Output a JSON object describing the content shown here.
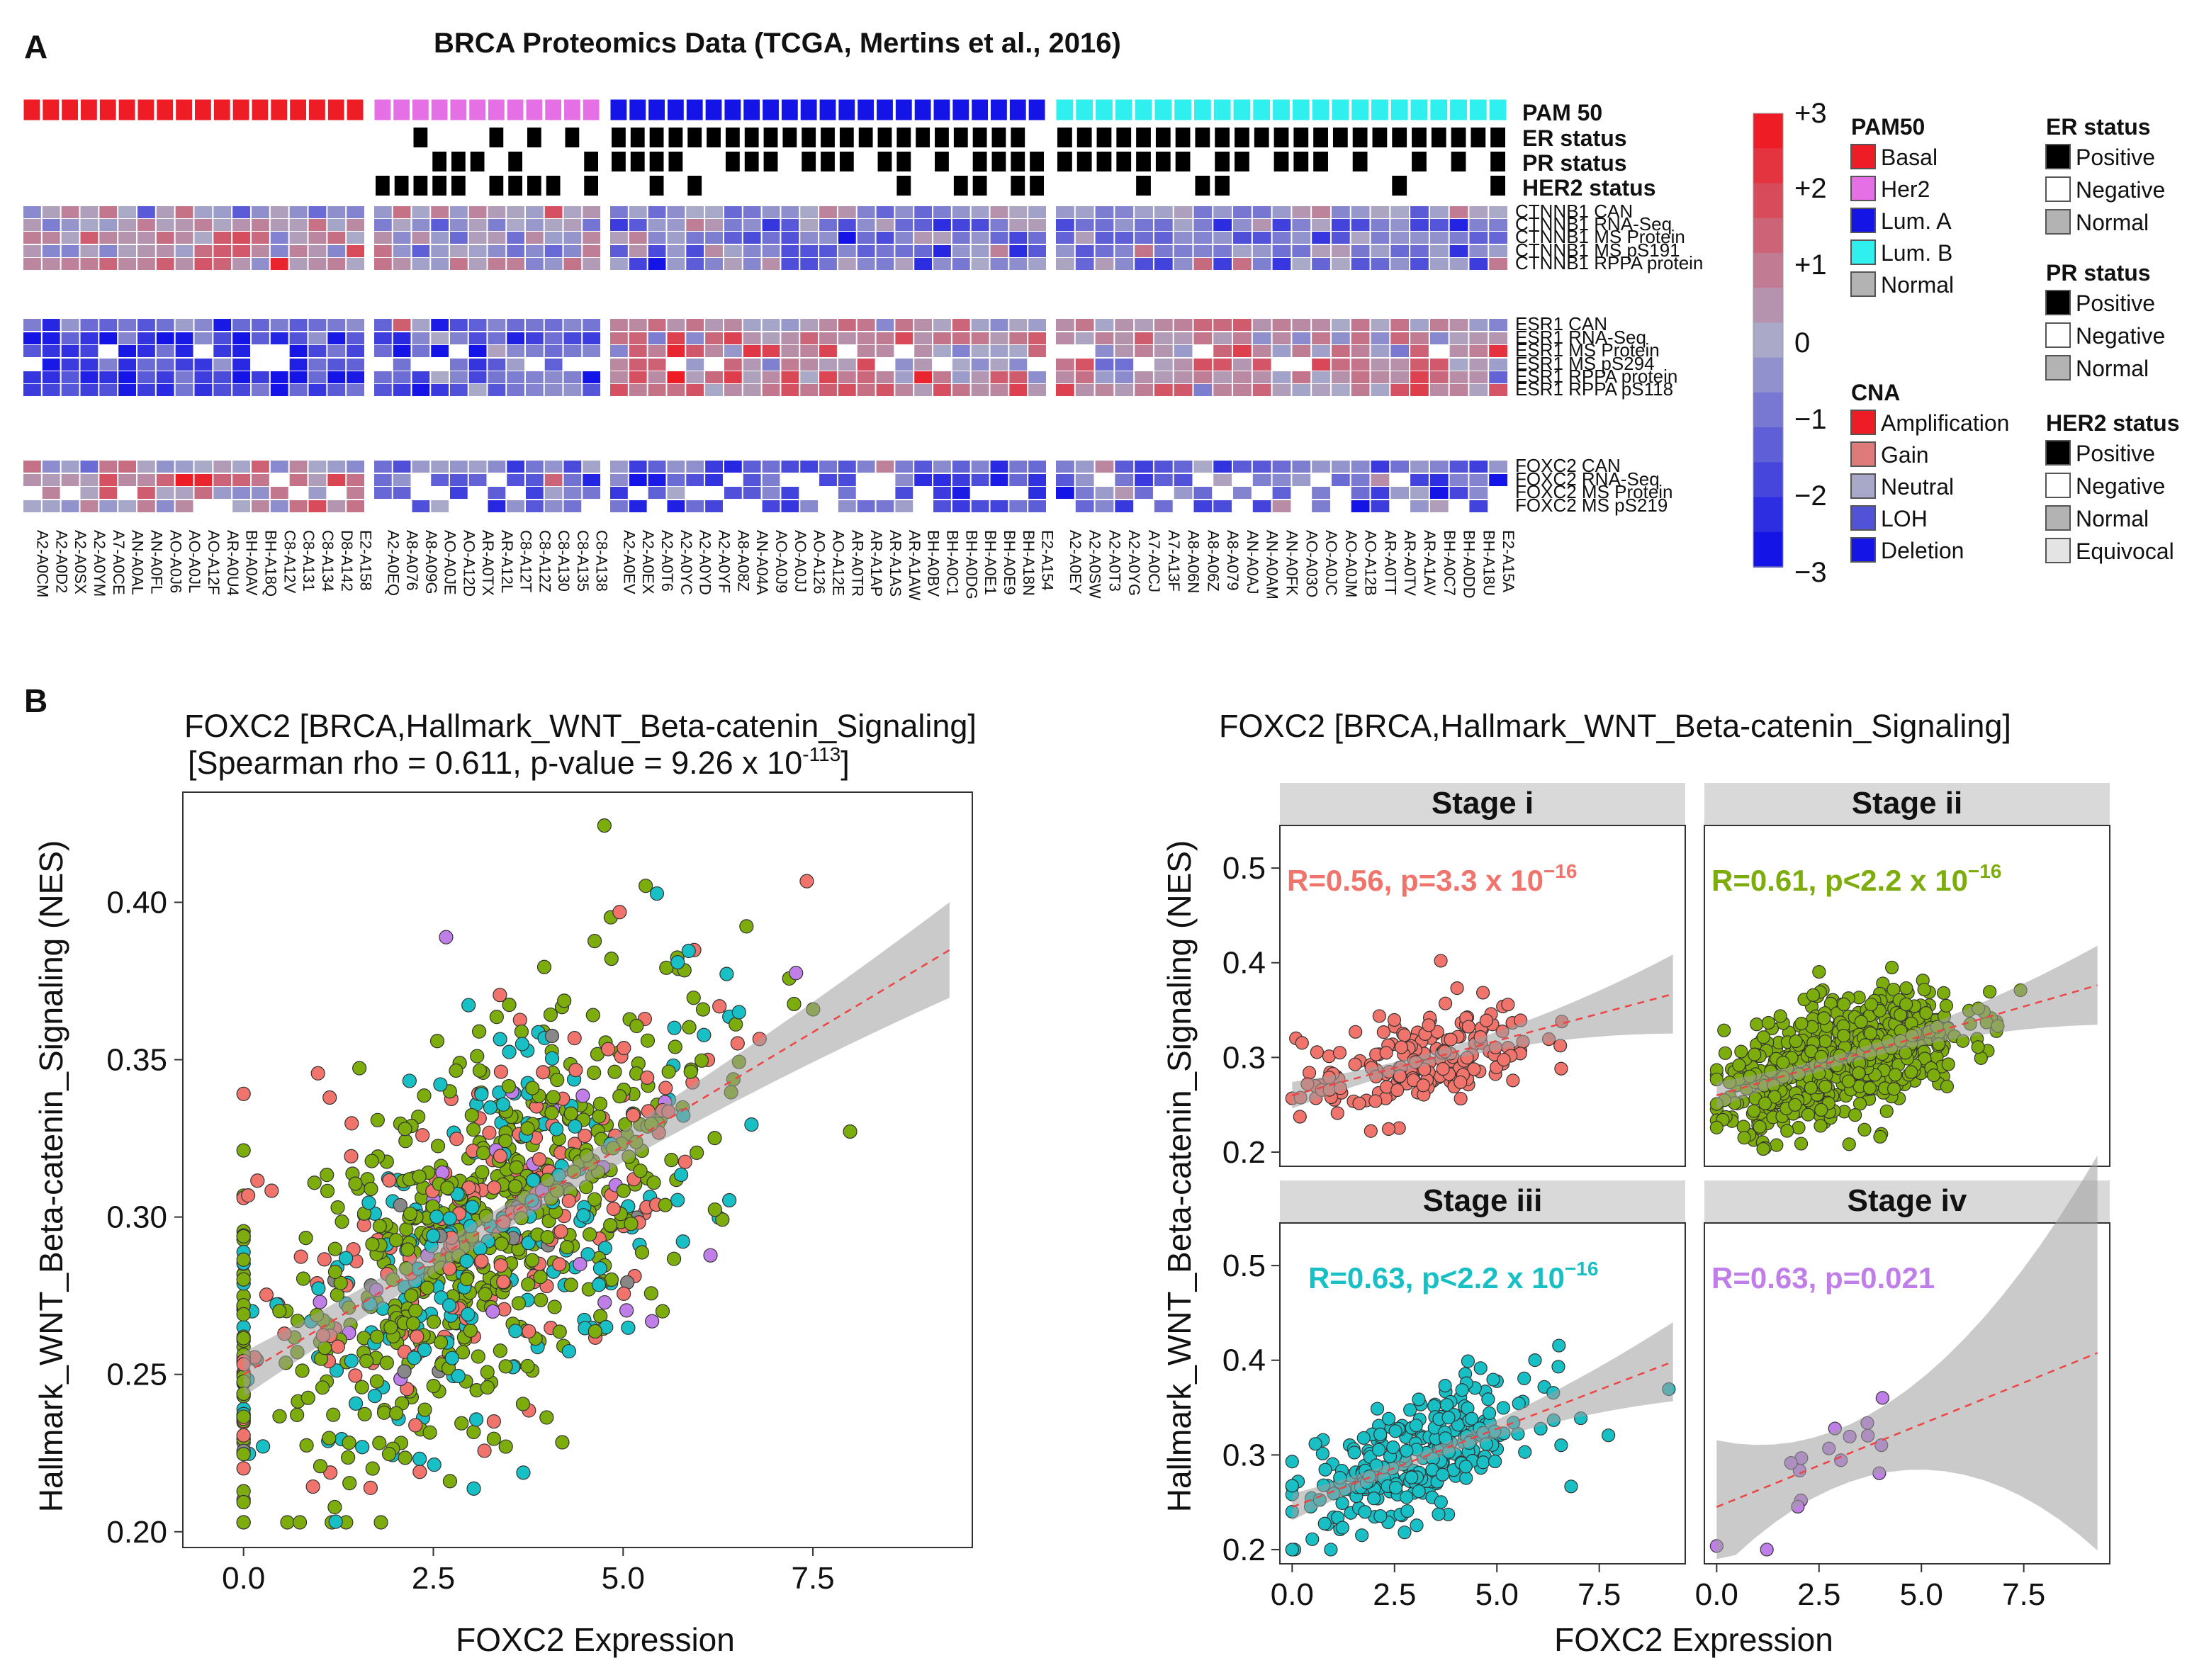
{
  "panel_a": {
    "label": "A",
    "title": "BRCA Proteomics Data (TCGA, Mertins et al., 2016)",
    "annotation_tracks": [
      "PAM 50",
      "ER status",
      "PR status",
      "HER2 status"
    ],
    "row_labels": [
      "CTNNB1 CAN",
      "CTNNB1 RNA-Seq",
      "CTNNB1 MS Protein",
      "CTNNB1 MS pS191",
      "CTNNB1 RPPA protein",
      "ESR1 CAN",
      "ESR1 RNA-Seq",
      "ESR1 MS Protein",
      "ESR1 MS pS294",
      "ESR1 RPPA protein",
      "ESR1 RPPA pS118",
      "FOXC2 CAN",
      "FOXC2 RNA-Seq",
      "FOXC2 MS Protein",
      "FOXC2 MS pS219"
    ],
    "sample_groups": [
      {
        "group": "Basal",
        "samples": [
          "A2-A0CM",
          "A2-A0D2",
          "A2-A0SX",
          "A2-A0YM",
          "A7-A0CE",
          "AN-A0AL",
          "AN-A0FL",
          "AO-A0J6",
          "AO-A0JL",
          "AO-A12F",
          "AR-A0U4",
          "BH-A0AV",
          "BH-A18Q",
          "C8-A12V",
          "C8-A131",
          "C8-A134",
          "D8-A142",
          "E2-A158"
        ]
      },
      {
        "group": "Her2",
        "samples": [
          "A2-A0EQ",
          "A8-A076",
          "A8-A09G",
          "AO-A0JE",
          "AO-A12D",
          "AR-A0TX",
          "AR-A12L",
          "C8-A12T",
          "C8-A12Z",
          "C8-A130",
          "C8-A135",
          "C8-A138"
        ]
      },
      {
        "group": "Lum. A",
        "samples": [
          "A2-A0EV",
          "A2-A0EX",
          "A2-A0T6",
          "A2-A0YC",
          "A2-A0YD",
          "A2-A0YF",
          "A8-A08Z",
          "AN-A04A",
          "AO-A0J9",
          "AO-A0JJ",
          "AO-A126",
          "AO-A12E",
          "AR-A0TR",
          "AR-A1AP",
          "AR-A1AS",
          "AR-A1AW",
          "BH-A0BV",
          "BH-A0C1",
          "BH-A0DG",
          "BH-A0E1",
          "BH-A0E9",
          "BH-A18N",
          "E2-A154"
        ]
      },
      {
        "group": "Lum. B",
        "samples": [
          "A2-A0EY",
          "A2-A0SW",
          "A2-A0T3",
          "A2-A0YG",
          "A7-A0CJ",
          "A7-A13F",
          "A8-A06N",
          "A8-A06Z",
          "A8-A079",
          "AN-A0AJ",
          "AN-A0AM",
          "AN-A0FK",
          "AO-A03O",
          "AO-A0JC",
          "AO-A0JM",
          "AO-A12B",
          "AR-A0TT",
          "AR-A0TV",
          "AR-A1AV",
          "BH-A0C7",
          "BH-A0DD",
          "BH-A18U",
          "E2-A15A"
        ]
      }
    ],
    "scale": {
      "ticks": [
        "+3",
        "+2",
        "+1",
        "0",
        "−1",
        "−2",
        "−3"
      ]
    },
    "legends": {
      "pam50": {
        "title": "PAM50",
        "items": [
          {
            "label": "Basal",
            "color": "#ee1c25"
          },
          {
            "label": "Her2",
            "color": "#e56fe5"
          },
          {
            "label": "Lum. A",
            "color": "#1414e6"
          },
          {
            "label": "Lum. B",
            "color": "#2fefef"
          },
          {
            "label": "Normal",
            "color": "#b3b3b3"
          }
        ]
      },
      "cna": {
        "title": "CNA",
        "items": [
          {
            "label": "Amplification",
            "color": "#ee1c25"
          },
          {
            "label": "Gain",
            "color": "#df7a7a"
          },
          {
            "label": "Neutral",
            "color": "#a8a8c8"
          },
          {
            "label": "LOH",
            "color": "#5252d6"
          },
          {
            "label": "Deletion",
            "color": "#1414e6"
          }
        ]
      },
      "er": {
        "title": "ER status",
        "items": [
          {
            "label": "Positive",
            "color": "#000000"
          },
          {
            "label": "Negative",
            "color": "#ffffff"
          },
          {
            "label": "Normal",
            "color": "#b3b3b3"
          }
        ]
      },
      "pr": {
        "title": "PR status",
        "items": [
          {
            "label": "Positive",
            "color": "#000000"
          },
          {
            "label": "Negative",
            "color": "#ffffff"
          },
          {
            "label": "Normal",
            "color": "#b3b3b3"
          }
        ]
      },
      "her2": {
        "title": "HER2 status",
        "items": [
          {
            "label": "Positive",
            "color": "#000000"
          },
          {
            "label": "Negative",
            "color": "#ffffff"
          },
          {
            "label": "Normal",
            "color": "#b3b3b3"
          },
          {
            "label": "Equivocal",
            "color": "#e4e4e4"
          }
        ]
      }
    }
  },
  "panel_b": {
    "label": "B",
    "left_title_1": "FOXC2 [BRCA,Hallmark_WNT_Beta-catenin_Signaling]",
    "left_title_2_prefix": "[Spearman rho = 0.611, p-value = 9.26 x 10",
    "left_title_2_exp": "-113",
    "left_title_2_suffix": "]",
    "right_title": "FOXC2 [BRCA,Hallmark_WNT_Beta-catenin_Signaling]",
    "xlabel": "FOXC2 Expression",
    "ylabel": "Hallmark_WNT_Beta-catenin_Signaling (NES)",
    "left_y_ticks": [
      "0.20",
      "0.25",
      "0.30",
      "0.35",
      "0.40"
    ],
    "left_x_ticks": [
      "0.0",
      "2.5",
      "5.0",
      "7.5"
    ],
    "right_y_ticks": [
      "0.2",
      "0.3",
      "0.4",
      "0.5"
    ],
    "right_x_ticks": [
      "0.0",
      "2.5",
      "5.0",
      "7.5"
    ],
    "facets": [
      {
        "title": "Stage i",
        "stat": "R=0.56, p=3.3 x 10",
        "exp": "−16",
        "color": "#f0746b"
      },
      {
        "title": "Stage ii",
        "stat": "R=0.61, p<2.2 x 10",
        "exp": "−16",
        "color": "#7cad0c"
      },
      {
        "title": "Stage iii",
        "stat": "R=0.63, p<2.2 x 10",
        "exp": "−16",
        "color": "#18bfc4"
      },
      {
        "title": "Stage iv",
        "stat": "R=0.63, p=0.021",
        "exp": "",
        "color": "#c07fe8"
      }
    ]
  },
  "chart_data": [
    {
      "type": "heatmap",
      "title": "BRCA Proteomics Data (TCGA, Mertins et al., 2016)",
      "rows": [
        "CTNNB1 CAN",
        "CTNNB1 RNA-Seq",
        "CTNNB1 MS Protein",
        "CTNNB1 MS pS191",
        "CTNNB1 RPPA protein",
        "ESR1 CAN",
        "ESR1 RNA-Seq",
        "ESR1 MS Protein",
        "ESR1 MS pS294",
        "ESR1 RPPA protein",
        "ESR1 RPPA pS118",
        "FOXC2 CAN",
        "FOXC2 RNA-Seq",
        "FOXC2 MS Protein",
        "FOXC2 MS pS219"
      ],
      "value_range": [
        -3,
        3
      ]
    },
    {
      "type": "scatter",
      "title": "FOXC2 [BRCA,Hallmark_WNT_Beta-catenin_Signaling]",
      "xlabel": "FOXC2 Expression",
      "ylabel": "Hallmark_WNT_Beta-catenin_Signaling (NES)",
      "xlim": [
        -0.8,
        9.6
      ],
      "ylim": [
        0.195,
        0.435
      ],
      "spearman_rho": 0.611,
      "fit": {
        "intercept": 0.25,
        "slope": 0.0145
      }
    },
    {
      "type": "scatter",
      "facets": [
        "Stage i",
        "Stage ii",
        "Stage iii",
        "Stage iv"
      ],
      "xlim": [
        -0.3,
        9.6
      ],
      "ylim": [
        0.185,
        0.545
      ],
      "fits": [
        {
          "intercept": 0.26,
          "slope": 0.0115
        },
        {
          "intercept": 0.26,
          "slope": 0.0125
        },
        {
          "intercept": 0.245,
          "slope": 0.0165
        },
        {
          "intercept": 0.245,
          "slope": 0.0175
        }
      ]
    }
  ]
}
